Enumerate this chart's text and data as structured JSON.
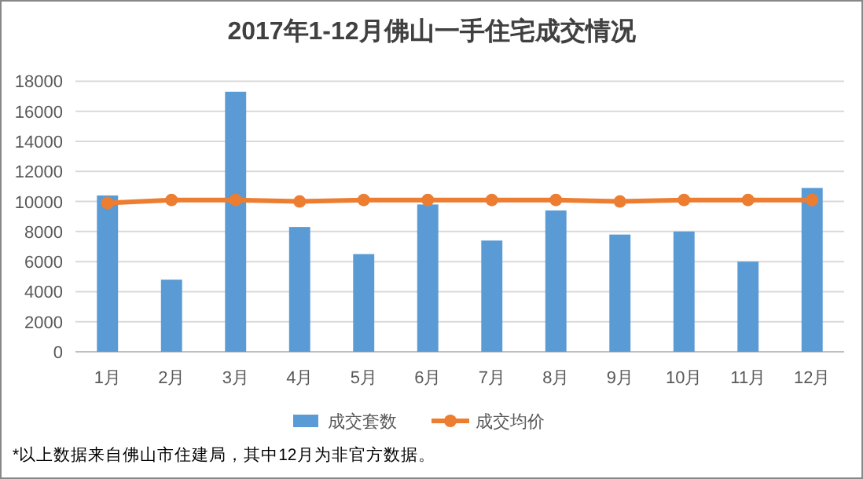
{
  "chart_data": {
    "type": "bar",
    "title": "2017年1-12月佛山一手住宅成交情况",
    "categories": [
      "1月",
      "2月",
      "3月",
      "4月",
      "5月",
      "6月",
      "7月",
      "8月",
      "9月",
      "10月",
      "11月",
      "12月"
    ],
    "series": [
      {
        "name": "成交套数",
        "color": "#5b9bd5",
        "values": [
          10400,
          4800,
          17300,
          8300,
          6500,
          9800,
          7400,
          9400,
          7800,
          8000,
          6000,
          10900
        ]
      },
      {
        "name": "成交均价",
        "type": "line",
        "color": "#ed7d31",
        "values": [
          9900,
          10100,
          10100,
          10000,
          10100,
          10100,
          10100,
          10100,
          10000,
          10100,
          10100,
          10100
        ]
      }
    ],
    "ylim": [
      0,
      18000
    ],
    "yticks": [
      0,
      2000,
      4000,
      6000,
      8000,
      10000,
      12000,
      14000,
      16000,
      18000
    ],
    "grid": "y",
    "legend": "bottom",
    "marker": "circle",
    "annotations": [
      "*以上数据来自佛山市住建局，其中12月为非官方数据。"
    ]
  }
}
